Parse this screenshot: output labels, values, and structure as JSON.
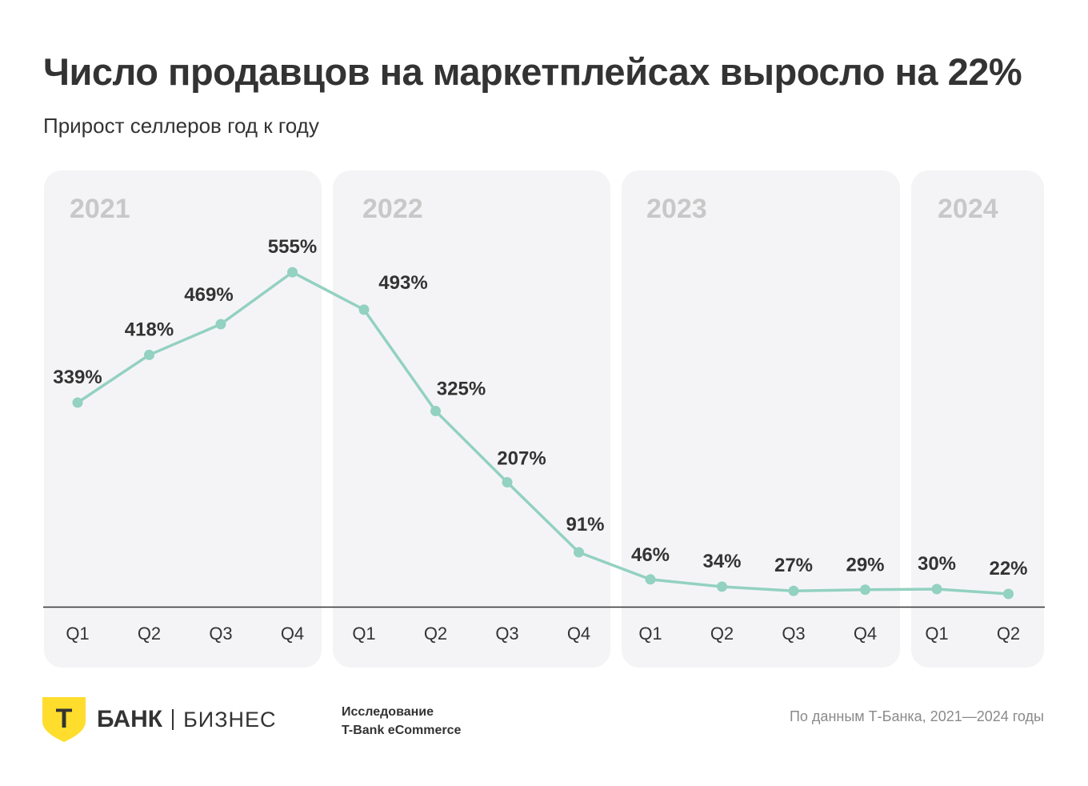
{
  "title": "Число продавцов на маркетплейсах выросло на 22%",
  "subtitle": "Прирост селлеров год к году",
  "footer": {
    "brand": "БАНК",
    "brand_sub": "БИЗНЕС",
    "logo_letter": "Т",
    "study_line1": "Исследование",
    "study_line2": "T-Bank eCommerce",
    "source": "По данным Т-Банка, 2021—2024 годы"
  },
  "colors": {
    "line": "#93d1c0",
    "panel": "#f4f4f6",
    "year": "#c8c8c8",
    "logo": "#ffdd2d"
  },
  "chart_data": {
    "type": "line",
    "title": "Число продавцов на маркетплейсах выросло на 22%",
    "subtitle": "Прирост селлеров год к году",
    "groups": [
      {
        "year": "2021",
        "quarters": [
          "Q1",
          "Q2",
          "Q3",
          "Q4"
        ]
      },
      {
        "year": "2022",
        "quarters": [
          "Q1",
          "Q2",
          "Q3",
          "Q4"
        ]
      },
      {
        "year": "2023",
        "quarters": [
          "Q1",
          "Q2",
          "Q3",
          "Q4"
        ]
      },
      {
        "year": "2024",
        "quarters": [
          "Q1",
          "Q2"
        ]
      }
    ],
    "values": [
      339,
      418,
      469,
      555,
      493,
      325,
      207,
      91,
      46,
      34,
      27,
      29,
      30,
      22
    ],
    "labels": [
      "339%",
      "418%",
      "469%",
      "555%",
      "493%",
      "325%",
      "207%",
      "91%",
      "46%",
      "34%",
      "27%",
      "29%",
      "30%",
      "22%"
    ],
    "unit": "%",
    "ylim": [
      0,
      560
    ],
    "grid": false,
    "legend": "none"
  }
}
